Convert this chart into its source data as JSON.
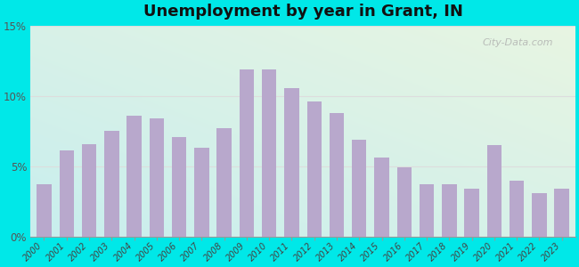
{
  "title": "Unemployment by year in Grant, IN",
  "years": [
    2000,
    2001,
    2002,
    2003,
    2004,
    2005,
    2006,
    2007,
    2008,
    2009,
    2010,
    2011,
    2012,
    2013,
    2014,
    2015,
    2016,
    2017,
    2018,
    2019,
    2020,
    2021,
    2022,
    2023
  ],
  "values": [
    3.7,
    6.1,
    6.6,
    7.5,
    8.6,
    8.4,
    7.1,
    6.3,
    7.7,
    11.9,
    11.9,
    10.6,
    9.6,
    8.8,
    6.9,
    5.6,
    4.9,
    3.7,
    3.7,
    3.4,
    6.5,
    4.0,
    3.1,
    3.4
  ],
  "bar_color": "#b8a8cc",
  "outer_bg": "#00e8e8",
  "bg_top_left": "#e8f5e2",
  "bg_bottom_right": "#c8eeee",
  "ylim": [
    0,
    15
  ],
  "yticks": [
    0,
    5,
    10,
    15
  ],
  "ytick_labels": [
    "0%",
    "5%",
    "10%",
    "15%"
  ],
  "title_fontsize": 13,
  "watermark_text": "City-Data.com",
  "grid_color": "#dddddd"
}
